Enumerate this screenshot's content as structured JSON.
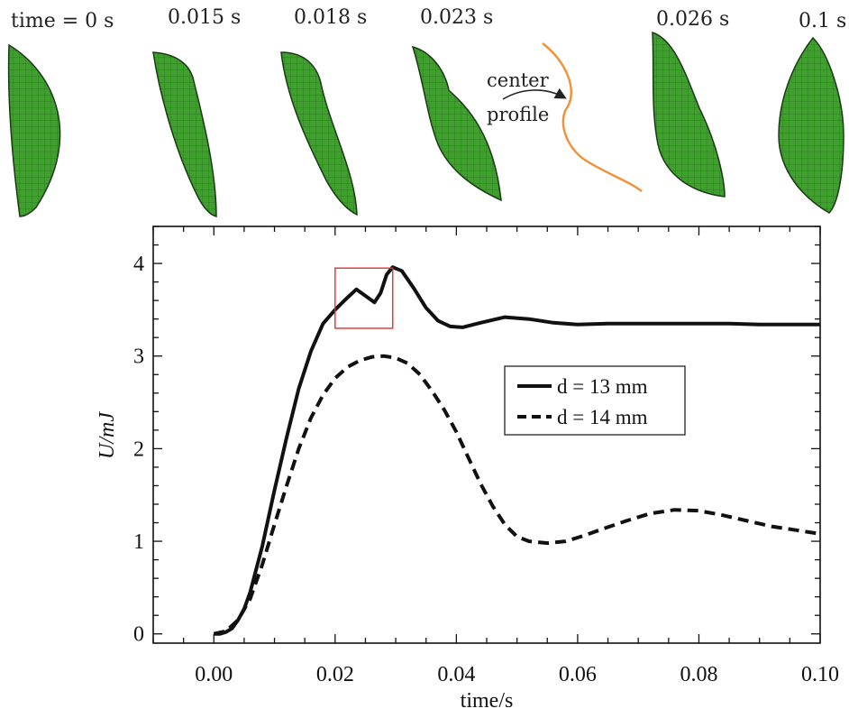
{
  "frames": [
    {
      "label": "time = 0 s",
      "t": 0
    },
    {
      "label": "0.015 s",
      "t": 0.015
    },
    {
      "label": "0.018 s",
      "t": 0.018
    },
    {
      "label": "0.023 s",
      "t": 0.023
    },
    {
      "label": "0.026 s",
      "t": 0.026
    },
    {
      "label": "0.1 s",
      "t": 0.1
    }
  ],
  "annotation": {
    "line1": "center",
    "line2": "profile",
    "curve_color": "#f0913a"
  },
  "colors": {
    "shell_fill": "#3fa02e",
    "shell_mesh": "#1d4d18",
    "curve": "#111111",
    "highlight_box": "#e03030"
  },
  "chart_data": {
    "type": "line",
    "xlabel": "time/s",
    "ylabel": "U/mJ",
    "xlim": [
      -0.01,
      0.1
    ],
    "ylim": [
      -0.1,
      4.4
    ],
    "xticks": [
      0.0,
      0.02,
      0.04,
      0.06,
      0.08,
      0.1
    ],
    "xtick_labels": [
      "0.00",
      "0.02",
      "0.04",
      "0.06",
      "0.08",
      "0.10"
    ],
    "yticks": [
      0,
      1,
      2,
      3,
      4
    ],
    "ytick_labels": [
      "0",
      "1",
      "2",
      "3",
      "4"
    ],
    "grid": false,
    "legend_position": "center-right",
    "highlight_region": {
      "x": [
        0.02,
        0.0295
      ],
      "y": [
        3.3,
        3.95
      ]
    },
    "series": [
      {
        "name": "d = 13 mm",
        "style": "solid",
        "x": [
          0.0,
          0.001,
          0.002,
          0.003,
          0.004,
          0.005,
          0.006,
          0.008,
          0.01,
          0.012,
          0.014,
          0.016,
          0.018,
          0.02,
          0.022,
          0.0235,
          0.025,
          0.0265,
          0.0275,
          0.0285,
          0.0295,
          0.031,
          0.033,
          0.035,
          0.037,
          0.039,
          0.041,
          0.044,
          0.048,
          0.052,
          0.056,
          0.06,
          0.065,
          0.07,
          0.075,
          0.08,
          0.085,
          0.09,
          0.095,
          0.1
        ],
        "y": [
          0.0,
          0.0,
          0.02,
          0.06,
          0.15,
          0.27,
          0.45,
          0.95,
          1.55,
          2.12,
          2.65,
          3.05,
          3.35,
          3.5,
          3.63,
          3.72,
          3.65,
          3.58,
          3.68,
          3.88,
          3.96,
          3.92,
          3.73,
          3.52,
          3.38,
          3.32,
          3.31,
          3.36,
          3.42,
          3.4,
          3.36,
          3.34,
          3.35,
          3.35,
          3.35,
          3.35,
          3.35,
          3.34,
          3.34,
          3.34
        ]
      },
      {
        "name": "d = 14 mm",
        "style": "dashed",
        "x": [
          0.0,
          0.002,
          0.004,
          0.006,
          0.008,
          0.01,
          0.012,
          0.014,
          0.016,
          0.018,
          0.02,
          0.022,
          0.024,
          0.026,
          0.028,
          0.03,
          0.032,
          0.034,
          0.036,
          0.038,
          0.04,
          0.042,
          0.044,
          0.046,
          0.048,
          0.05,
          0.052,
          0.055,
          0.058,
          0.061,
          0.064,
          0.068,
          0.072,
          0.076,
          0.08,
          0.084,
          0.088,
          0.092,
          0.096,
          0.1
        ],
        "y": [
          0.0,
          0.03,
          0.15,
          0.38,
          0.75,
          1.18,
          1.6,
          2.0,
          2.33,
          2.58,
          2.76,
          2.88,
          2.95,
          2.99,
          3.0,
          2.98,
          2.92,
          2.8,
          2.62,
          2.42,
          2.18,
          1.9,
          1.62,
          1.38,
          1.18,
          1.05,
          1.0,
          0.98,
          1.0,
          1.06,
          1.13,
          1.22,
          1.3,
          1.34,
          1.33,
          1.28,
          1.22,
          1.16,
          1.12,
          1.08
        ]
      }
    ]
  }
}
